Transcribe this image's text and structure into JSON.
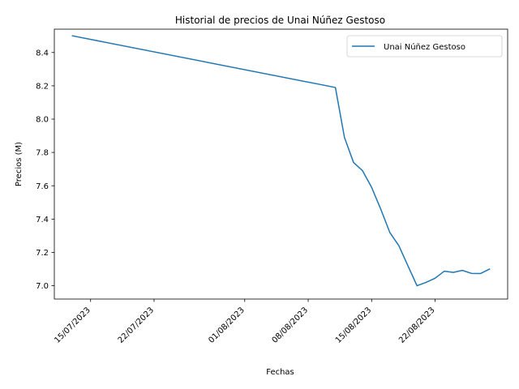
{
  "chart_data": {
    "type": "line",
    "title": "Historial de precios de Unai Núñez Gestoso",
    "xlabel": "Fechas",
    "ylabel": "Precios (M)",
    "x_tick_labels": [
      "15/07/2023",
      "22/07/2023",
      "01/08/2023",
      "08/08/2023",
      "15/08/2023",
      "22/08/2023"
    ],
    "y_tick_labels": [
      "7.0",
      "7.2",
      "7.4",
      "7.6",
      "7.8",
      "8.0",
      "8.2",
      "8.4"
    ],
    "xlim": [
      "2023-07-11",
      "2023-08-30"
    ],
    "ylim": [
      6.92,
      8.54
    ],
    "grid": false,
    "legend_position": "top-right",
    "series": [
      {
        "name": "Unai Núñez Gestoso",
        "color": "#1f77b4",
        "points": [
          {
            "x": "2023-07-13",
            "y": 8.5
          },
          {
            "x": "2023-08-11",
            "y": 8.19
          },
          {
            "x": "2023-08-12",
            "y": 7.89
          },
          {
            "x": "2023-08-13",
            "y": 7.74
          },
          {
            "x": "2023-08-14",
            "y": 7.69
          },
          {
            "x": "2023-08-15",
            "y": 7.59
          },
          {
            "x": "2023-08-16",
            "y": 7.46
          },
          {
            "x": "2023-08-17",
            "y": 7.32
          },
          {
            "x": "2023-08-18",
            "y": 7.24
          },
          {
            "x": "2023-08-19",
            "y": 7.12
          },
          {
            "x": "2023-08-20",
            "y": 7.0
          },
          {
            "x": "2023-08-21",
            "y": 7.02
          },
          {
            "x": "2023-08-22",
            "y": 7.045
          },
          {
            "x": "2023-08-23",
            "y": 7.087
          },
          {
            "x": "2023-08-24",
            "y": 7.08
          },
          {
            "x": "2023-08-25",
            "y": 7.092
          },
          {
            "x": "2023-08-26",
            "y": 7.074
          },
          {
            "x": "2023-08-27",
            "y": 7.073
          },
          {
            "x": "2023-08-28",
            "y": 7.1
          }
        ]
      }
    ]
  }
}
